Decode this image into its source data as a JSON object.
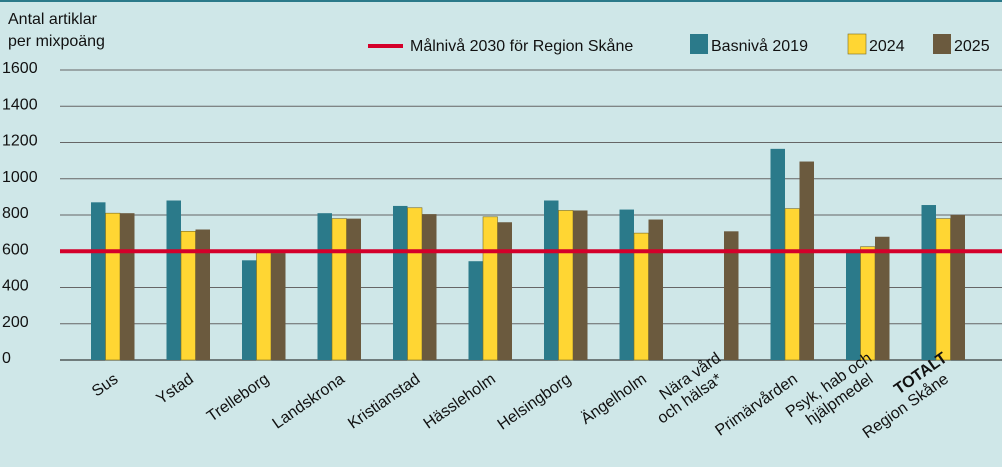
{
  "chart_data": {
    "type": "bar",
    "ylabel": [
      "Antal artiklar",
      "per mixpoäng"
    ],
    "categories": [
      [
        "Sus"
      ],
      [
        "Ystad"
      ],
      [
        "Trelleborg"
      ],
      [
        "Landskrona"
      ],
      [
        "Kristianstad"
      ],
      [
        "Hässleholm"
      ],
      [
        "Helsingborg"
      ],
      [
        "Ängelholm"
      ],
      [
        "Nära vård",
        "och hälsa*"
      ],
      [
        "Primärvården"
      ],
      [
        "Psyk, hab och",
        "hjälpmedel"
      ],
      [
        "TOTALT",
        "Region Skåne"
      ]
    ],
    "series": [
      {
        "name": "Basnivå 2019",
        "color": "#2b7a8a",
        "values": [
          870,
          880,
          550,
          810,
          850,
          545,
          880,
          830,
          null,
          1165,
          600,
          855
        ]
      },
      {
        "name": "2024",
        "color": "#ffd633",
        "values": [
          810,
          710,
          600,
          780,
          840,
          790,
          825,
          700,
          null,
          835,
          625,
          780
        ]
      },
      {
        "name": "2025",
        "color": "#6b5a3e",
        "values": [
          810,
          720,
          590,
          780,
          805,
          760,
          825,
          775,
          710,
          1095,
          680,
          800
        ]
      }
    ],
    "target": {
      "name": "Målnivå 2030 för Region Skåne",
      "value": 600,
      "color": "#d4002a"
    },
    "ylim": [
      0,
      1600
    ],
    "yticks": [
      0,
      200,
      400,
      600,
      800,
      1000,
      1200,
      1400,
      1600
    ],
    "grid": true
  }
}
